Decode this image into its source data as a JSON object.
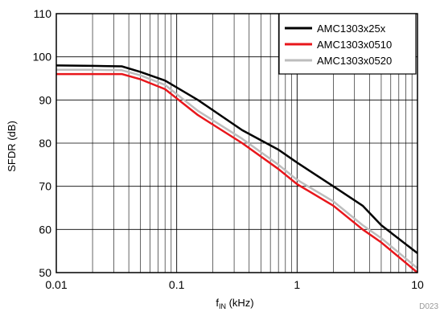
{
  "chart_data": {
    "type": "line",
    "title": "",
    "xlabel_main": "f",
    "xlabel_sub": "IN",
    "xlabel_unit": " (kHz)",
    "ylabel": "SFDR (dB)",
    "x_scale": "log",
    "xlim": [
      0.01,
      10
    ],
    "ylim": [
      50,
      110
    ],
    "x_ticks": [
      "0.01",
      "0.1",
      "1",
      "10"
    ],
    "y_ticks": [
      "50",
      "60",
      "70",
      "80",
      "90",
      "100",
      "110"
    ],
    "grid": true,
    "legend_position": "top-right",
    "figure_id": "D023",
    "series": [
      {
        "name": "AMC1303x25x",
        "color": "#000000",
        "x": [
          0.01,
          0.02,
          0.035,
          0.05,
          0.08,
          0.15,
          0.35,
          0.7,
          1.0,
          2.0,
          3.5,
          5.0,
          10.0
        ],
        "y": [
          98,
          97.9,
          97.8,
          96.5,
          94.5,
          90,
          83,
          78.5,
          75.5,
          70,
          65.5,
          61,
          54.5
        ]
      },
      {
        "name": "AMC1303x0510",
        "color": "#e8161b",
        "x": [
          0.01,
          0.02,
          0.035,
          0.05,
          0.08,
          0.15,
          0.35,
          0.7,
          1.0,
          2.0,
          3.5,
          5.0,
          10.0
        ],
        "y": [
          96,
          96,
          96,
          94.8,
          92.5,
          86.5,
          80,
          74,
          70.5,
          65.5,
          60,
          57,
          50
        ]
      },
      {
        "name": "AMC1303x0520",
        "color": "#bdbdbd",
        "x": [
          0.01,
          0.02,
          0.035,
          0.05,
          0.08,
          0.15,
          0.35,
          0.7,
          1.0,
          2.0,
          3.5,
          5.0,
          10.0
        ],
        "y": [
          97,
          97,
          96.9,
          95.7,
          93.5,
          87.5,
          81,
          75,
          71.5,
          66.5,
          61,
          58,
          51
        ]
      }
    ]
  }
}
